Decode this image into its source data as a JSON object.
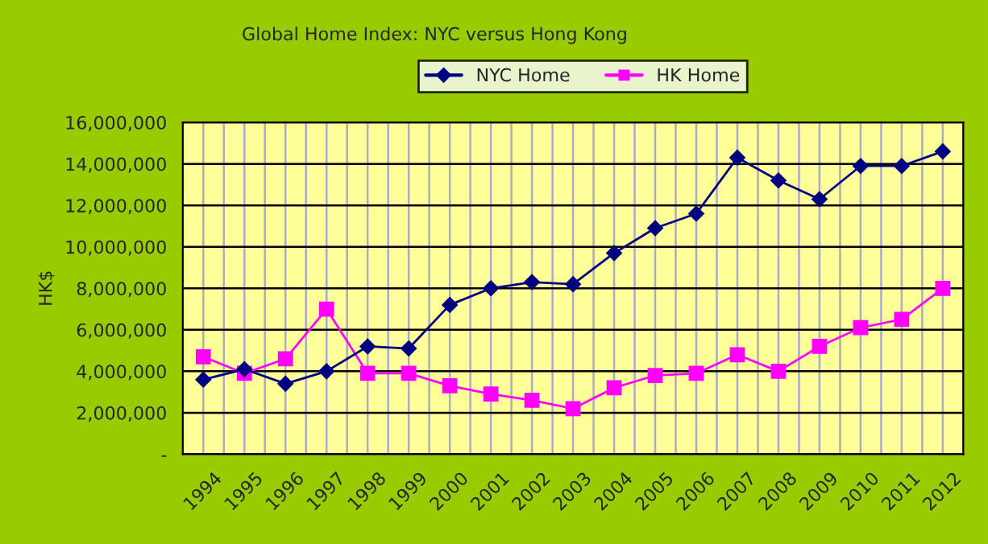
{
  "chart_data": {
    "type": "line",
    "title": "Global Home Index: NYC versus Hong Kong",
    "ylabel": "HK$",
    "categories": [
      "1994",
      "1995",
      "1996",
      "1997",
      "1998",
      "1999",
      "2000",
      "2001",
      "2002",
      "2003",
      "2004",
      "2005",
      "2006",
      "2007",
      "2008",
      "2009",
      "2010",
      "2011",
      "2012"
    ],
    "series": [
      {
        "name": "NYC Home",
        "color": "#000080",
        "marker": "diamond",
        "values": [
          3600000,
          4100000,
          3400000,
          4000000,
          5200000,
          5100000,
          7200000,
          8000000,
          8300000,
          8200000,
          9700000,
          10900000,
          11600000,
          14300000,
          13200000,
          12300000,
          13900000,
          13900000,
          14600000
        ]
      },
      {
        "name": "HK Home",
        "color": "#ff00ff",
        "marker": "square",
        "values": [
          4700000,
          3900000,
          4600000,
          7000000,
          3900000,
          3900000,
          3300000,
          2900000,
          2600000,
          2200000,
          3200000,
          3800000,
          3900000,
          4800000,
          4000000,
          5200000,
          6100000,
          6500000,
          8000000
        ]
      }
    ],
    "ylim": [
      0,
      16000000
    ],
    "yticks": [
      {
        "value": 0,
        "label": "-"
      },
      {
        "value": 2000000,
        "label": "2,000,000"
      },
      {
        "value": 4000000,
        "label": "4,000,000"
      },
      {
        "value": 6000000,
        "label": "6,000,000"
      },
      {
        "value": 8000000,
        "label": "8,000,000"
      },
      {
        "value": 10000000,
        "label": "10,000,000"
      },
      {
        "value": 12000000,
        "label": "12,000,000"
      },
      {
        "value": 14000000,
        "label": "14,000,000"
      },
      {
        "value": 16000000,
        "label": "16,000,000"
      }
    ],
    "grid": true,
    "legend": "top",
    "line_style": "solid"
  }
}
